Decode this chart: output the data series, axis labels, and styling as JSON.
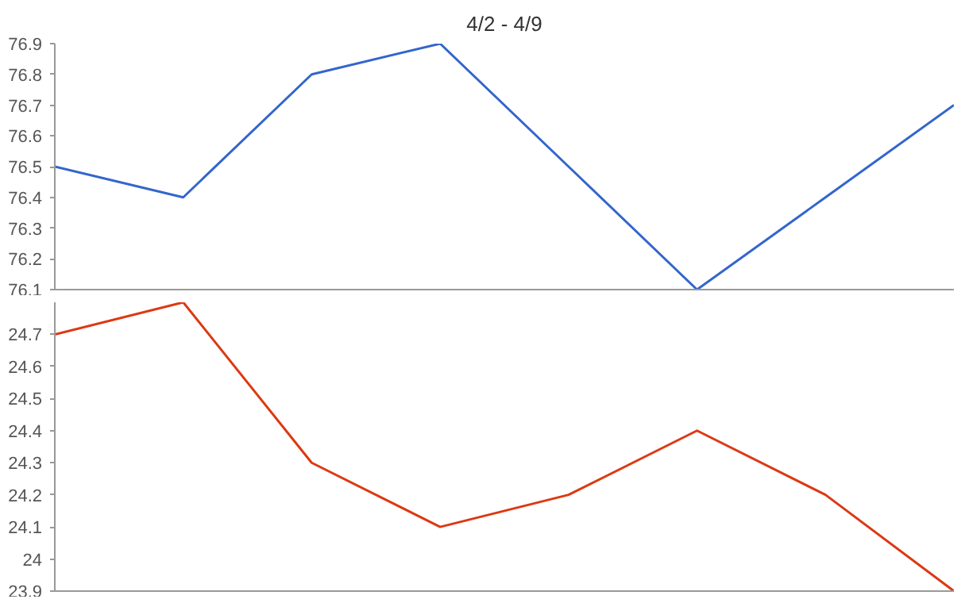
{
  "chart_data": [
    {
      "type": "line",
      "title": "4/2 - 4/9",
      "categories": [
        null,
        null,
        null,
        null,
        null,
        null,
        null,
        null
      ],
      "series": [
        {
          "color": "#3366cc",
          "values": [
            76.5,
            76.4,
            76.8,
            76.9,
            76.5,
            76.1,
            76.4,
            76.7
          ]
        }
      ],
      "ylim": [
        76.1,
        76.9
      ],
      "yticks": [
        76.1,
        76.2,
        76.3,
        76.4,
        76.5,
        76.6,
        76.7,
        76.8,
        76.9
      ],
      "grid": false,
      "tick_labels": "y"
    },
    {
      "type": "line",
      "categories": [
        null,
        null,
        null,
        null,
        null,
        null,
        null,
        null
      ],
      "series": [
        {
          "color": "#dc3912",
          "values": [
            24.7,
            24.8,
            24.3,
            24.1,
            24.2,
            24.4,
            24.2,
            23.9
          ]
        }
      ],
      "ylim": [
        23.9,
        24.8
      ],
      "yticks": [
        23.9,
        24,
        24.1,
        24.2,
        24.3,
        24.4,
        24.5,
        24.6,
        24.7
      ],
      "grid": false,
      "tick_labels": "y"
    }
  ]
}
